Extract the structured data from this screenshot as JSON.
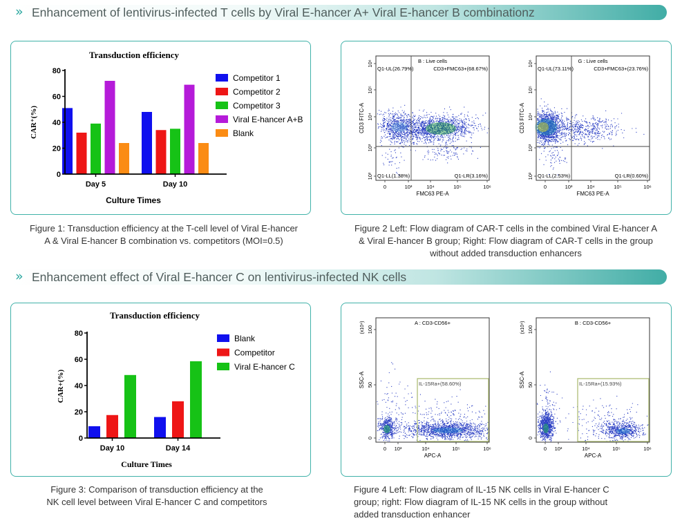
{
  "section1": {
    "title": "Enhancement of lentivirus-infected T cells by Viral E-hancer A+ Viral E-hancer B combinationz"
  },
  "section2": {
    "title": "Enhancement effect of Viral E-hancer C on lentivirus-infected NK cells"
  },
  "captions": {
    "fig1": [
      "Figure 1: Transduction efficiency at the T-cell level of Viral E-hancer",
      "A & Viral E-hancer B combination vs. competitors (MOI=0.5)"
    ],
    "fig2": [
      "Figure 2 Left: Flow diagram of CAR-T cells in the combined Viral E-hancer A",
      "& Viral E-hancer B group; Right: Flow diagram of CAR-T cells in the group",
      "without added transduction enhancers"
    ],
    "fig3": [
      "Figure 3: Comparison of transduction efficiency at the",
      "NK cell level between Viral E-hancer C and competitors"
    ],
    "fig4": [
      "Figure 4 Left: Flow diagram of IL-15 NK cells in Viral E-hancer C",
      "group; right: Flow diagram of IL-15 NK cells in the group without",
      "added transduction enhancer"
    ]
  },
  "colors": {
    "accent": "#3fb1a8",
    "blue": "#1010ee",
    "red": "#ee1616",
    "green": "#16c216",
    "purple": "#b51bd9",
    "orange": "#fb8c14",
    "dot": "#2b3fc4",
    "gate": "#a8b86a"
  },
  "chart_data": [
    {
      "type": "bar",
      "title": "Transduction efficiency",
      "xlabel": "Culture Times",
      "ylabel": "CAR⁺(%)",
      "categories": [
        "Day 5",
        "Day 10"
      ],
      "ylim": [
        0,
        80
      ],
      "yticks": [
        "0",
        "20",
        "40",
        "60",
        "80"
      ],
      "legend": "right",
      "grid": false,
      "series": [
        {
          "name": "Competitor 1",
          "color": "#1010ee",
          "values": [
            51,
            48
          ]
        },
        {
          "name": "Competitor 2",
          "color": "#ee1616",
          "values": [
            32,
            34
          ]
        },
        {
          "name": "Competitor 3",
          "color": "#16c216",
          "values": [
            39,
            35
          ]
        },
        {
          "name": "Viral E-hancer A+B",
          "color": "#b51bd9",
          "values": [
            72,
            69
          ]
        },
        {
          "name": "Blank",
          "color": "#fb8c14",
          "values": [
            24,
            24
          ]
        }
      ]
    },
    {
      "type": "bar",
      "title": "Transduction efficiency",
      "xlabel": "Culture Times",
      "ylabel": "CAR+(%)",
      "categories": [
        "Day 10",
        "Day 14"
      ],
      "ylim": [
        0,
        80
      ],
      "yticks": [
        "0",
        "20",
        "40",
        "60",
        "80"
      ],
      "legend": "right",
      "grid": false,
      "series": [
        {
          "name": "Blank",
          "color": "#1010ee",
          "values": [
            9,
            16
          ]
        },
        {
          "name": "Competitor",
          "color": "#ee1616",
          "values": [
            17.5,
            28
          ]
        },
        {
          "name": "Viral E-hancer C",
          "color": "#16c216",
          "values": [
            48,
            58.5
          ]
        }
      ]
    },
    {
      "type": "scatter",
      "title": "B : Live cells",
      "xlabel": "FMC63 PE-A",
      "ylabel": "CD3 FITC-A",
      "xticks": [
        "0",
        "10³",
        "10⁴",
        "10⁵",
        "10⁶"
      ],
      "yticks": [
        "10²",
        "10³",
        "10⁴",
        "10⁵",
        "10⁶"
      ],
      "quadrants": {
        "ul": "Q1-UL(26.79%)",
        "ur": "CD3+FMC63+(68.67%)",
        "ll": "Q1-LL(1.38%)",
        "lr": "Q1-LR(3.16%)"
      }
    },
    {
      "type": "scatter",
      "title": "G : Live cells",
      "xlabel": "FMC63 PE-A",
      "ylabel": "CD3 FITC-A",
      "xticks": [
        "0",
        "10³",
        "10⁴",
        "10⁵",
        "10⁶"
      ],
      "yticks": [
        "10²",
        "10³",
        "10⁴",
        "10⁵",
        "10⁶"
      ],
      "quadrants": {
        "ul": "Q1-UL(73.11%)",
        "ur": "CD3+FMC63+(23.76%)",
        "ll": "Q1-LL(2.53%)",
        "lr": "Q1-LR(0.60%)"
      }
    },
    {
      "type": "scatter",
      "title": "A : CD3-CD56+",
      "xlabel": "APC-A",
      "ylabel": "SSC-A",
      "yunit": "(x10⁴)",
      "xticks": [
        "0",
        "10³",
        "10⁴",
        "10⁵",
        "10⁶"
      ],
      "yticks": [
        "0",
        "50",
        "100"
      ],
      "gate": "IL-15Ra+(58.60%)"
    },
    {
      "type": "scatter",
      "title": "B : CD3-CD56+",
      "xlabel": "APC-A",
      "ylabel": "SSC-A",
      "yunit": "(x10⁴)",
      "xticks": [
        "0",
        "10³",
        "10⁴",
        "10⁵",
        "10⁶"
      ],
      "yticks": [
        "0",
        "50",
        "100"
      ],
      "gate": "IL-15Ra+(15.93%)"
    }
  ]
}
